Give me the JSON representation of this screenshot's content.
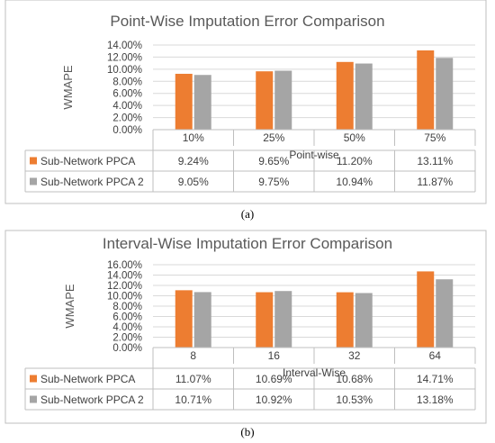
{
  "chart_data": [
    {
      "type": "bar",
      "title": "Point-Wise Imputation Error Comparison",
      "ylabel": "WMAPE",
      "xlabel": "Point-wise",
      "categories": [
        "10%",
        "25%",
        "50%",
        "75%"
      ],
      "ylim": [
        0,
        14
      ],
      "yticks": [
        "0.00%",
        "2.00%",
        "4.00%",
        "6.00%",
        "8.00%",
        "10.00%",
        "12.00%",
        "14.00%"
      ],
      "series": [
        {
          "name": "Sub-Network PPCA",
          "color": "#ED7D31",
          "values": [
            9.24,
            9.65,
            11.2,
            13.11
          ],
          "labels": [
            "9.24%",
            "9.65%",
            "11.20%",
            "13.11%"
          ]
        },
        {
          "name": "Sub-Network PPCA 2",
          "color": "#A5A5A5",
          "values": [
            9.05,
            9.75,
            10.94,
            11.87
          ],
          "labels": [
            "9.05%",
            "9.75%",
            "10.94%",
            "11.87%"
          ]
        }
      ],
      "caption": "(a)"
    },
    {
      "type": "bar",
      "title": "Interval-Wise Imputation Error Comparison",
      "ylabel": "WMAPE",
      "xlabel": "Interval-Wise",
      "categories": [
        "8",
        "16",
        "32",
        "64"
      ],
      "ylim": [
        0,
        16
      ],
      "yticks": [
        "0.00%",
        "2.00%",
        "4.00%",
        "6.00%",
        "8.00%",
        "10.00%",
        "12.00%",
        "14.00%",
        "16.00%"
      ],
      "series": [
        {
          "name": "Sub-Network PPCA",
          "color": "#ED7D31",
          "values": [
            11.07,
            10.69,
            10.68,
            14.71
          ],
          "labels": [
            "11.07%",
            "10.69%",
            "10.68%",
            "14.71%"
          ]
        },
        {
          "name": "Sub-Network PPCA 2",
          "color": "#A5A5A5",
          "values": [
            10.71,
            10.92,
            10.53,
            13.18
          ],
          "labels": [
            "10.71%",
            "10.92%",
            "10.53%",
            "13.18%"
          ]
        }
      ],
      "caption": "(b)"
    }
  ]
}
